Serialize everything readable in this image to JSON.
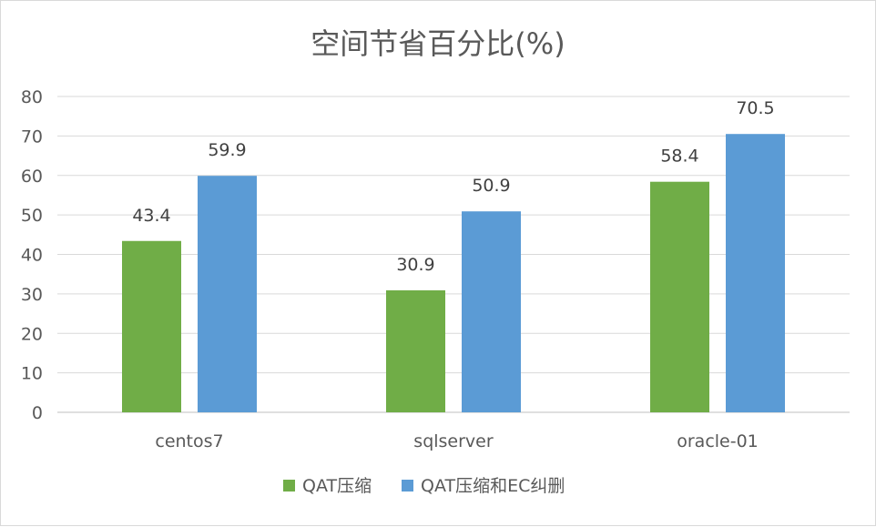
{
  "chart_data": {
    "type": "bar",
    "title": "空间节省百分比(%)",
    "categories": [
      "centos7",
      "sqlserver",
      "oracle-01"
    ],
    "series": [
      {
        "name": "QAT压缩",
        "values": [
          43.4,
          30.9,
          58.4
        ],
        "color": "#70ad47"
      },
      {
        "name": "QAT压缩和EC纠删",
        "values": [
          59.9,
          50.9,
          70.5
        ],
        "color": "#5b9bd5"
      }
    ],
    "ylim": [
      0,
      80
    ],
    "yticks": [
      0,
      10,
      20,
      30,
      40,
      50,
      60,
      70,
      80
    ],
    "grid": true,
    "legend_position": "bottom",
    "data_labels": true
  }
}
